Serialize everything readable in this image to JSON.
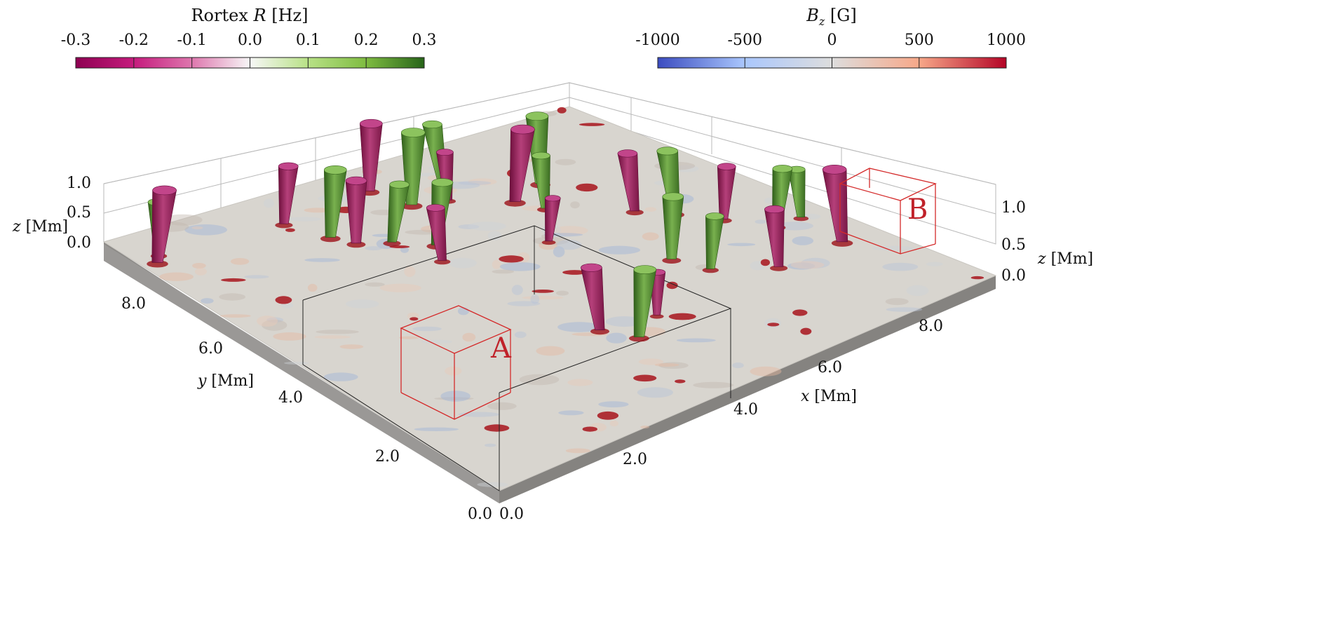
{
  "colorbars": {
    "vortex": {
      "title_prefix": "Rortex ",
      "title_symbol": "R",
      "title_unit": " [Hz]",
      "ticks": [
        "-0.3",
        "-0.2",
        "-0.1",
        "0.0",
        "0.1",
        "0.2",
        "0.3"
      ],
      "colors": [
        "#8e0152",
        "#c51b7d",
        "#de77ae",
        "#f7f7f7",
        "#b8e186",
        "#7fbc41",
        "#276419"
      ]
    },
    "bz": {
      "title_symbol": "B",
      "title_sub": "z",
      "title_unit": " [G]",
      "ticks": [
        "-1000",
        "-500",
        "0",
        "500",
        "1000"
      ],
      "colors": [
        "#3b4cc0",
        "#aac7fd",
        "#dddddd",
        "#f7a889",
        "#b40426"
      ]
    }
  },
  "axes": {
    "z_left_ticks": [
      "1.0",
      "0.5",
      "0.0"
    ],
    "z_right_ticks": [
      "1.0",
      "0.5",
      "0.0"
    ],
    "y_ticks": [
      "8.0",
      "6.0",
      "4.0",
      "2.0",
      "0.0"
    ],
    "x_ticks": [
      "8.0",
      "6.0",
      "4.0",
      "2.0",
      "0.0"
    ],
    "z_label_symbol": "z",
    "z_label_unit": " [Mm]",
    "y_label_symbol": "y",
    "y_label_unit": " [Mm]",
    "x_label_symbol": "x",
    "x_label_unit": " [Mm]"
  },
  "regions": {
    "a_label": "A",
    "b_label": "B"
  },
  "colors": {
    "surface": "#d8d5cf",
    "slab_side": "#8d8b88",
    "vortex_neg": "#a3245f",
    "vortex_pos": "#4f8a2d",
    "box_red": "#d42a2a",
    "box_black": "#222222"
  },
  "vortex_tubes": [
    {
      "sign": "neg",
      "strength": 0.9
    },
    {
      "sign": "pos",
      "strength": 0.5
    },
    {
      "sign": "neg",
      "strength": 0.6
    },
    {
      "sign": "pos",
      "strength": 0.8
    },
    {
      "sign": "neg",
      "strength": 0.7
    },
    {
      "sign": "pos",
      "strength": 0.6
    },
    {
      "sign": "neg",
      "strength": 0.5
    },
    {
      "sign": "pos",
      "strength": 0.7
    },
    {
      "sign": "neg",
      "strength": 0.8
    },
    {
      "sign": "pos",
      "strength": 0.9
    },
    {
      "sign": "neg",
      "strength": 0.4
    },
    {
      "sign": "pos",
      "strength": 0.6
    },
    {
      "sign": "neg",
      "strength": 0.9
    },
    {
      "sign": "pos",
      "strength": 0.5
    },
    {
      "sign": "neg",
      "strength": 0.3
    },
    {
      "sign": "pos",
      "strength": 0.8
    },
    {
      "sign": "neg",
      "strength": 0.6
    },
    {
      "sign": "pos",
      "strength": 0.7
    },
    {
      "sign": "neg",
      "strength": 0.5
    },
    {
      "sign": "pos",
      "strength": 0.6
    },
    {
      "sign": "neg",
      "strength": 0.9
    },
    {
      "sign": "pos",
      "strength": 0.4
    },
    {
      "sign": "neg",
      "strength": 0.7
    },
    {
      "sign": "pos",
      "strength": 0.8
    },
    {
      "sign": "neg",
      "strength": 0.3
    },
    {
      "sign": "pos",
      "strength": 0.5
    },
    {
      "sign": "neg",
      "strength": 0.6
    },
    {
      "sign": "pos",
      "strength": 0.7
    }
  ]
}
